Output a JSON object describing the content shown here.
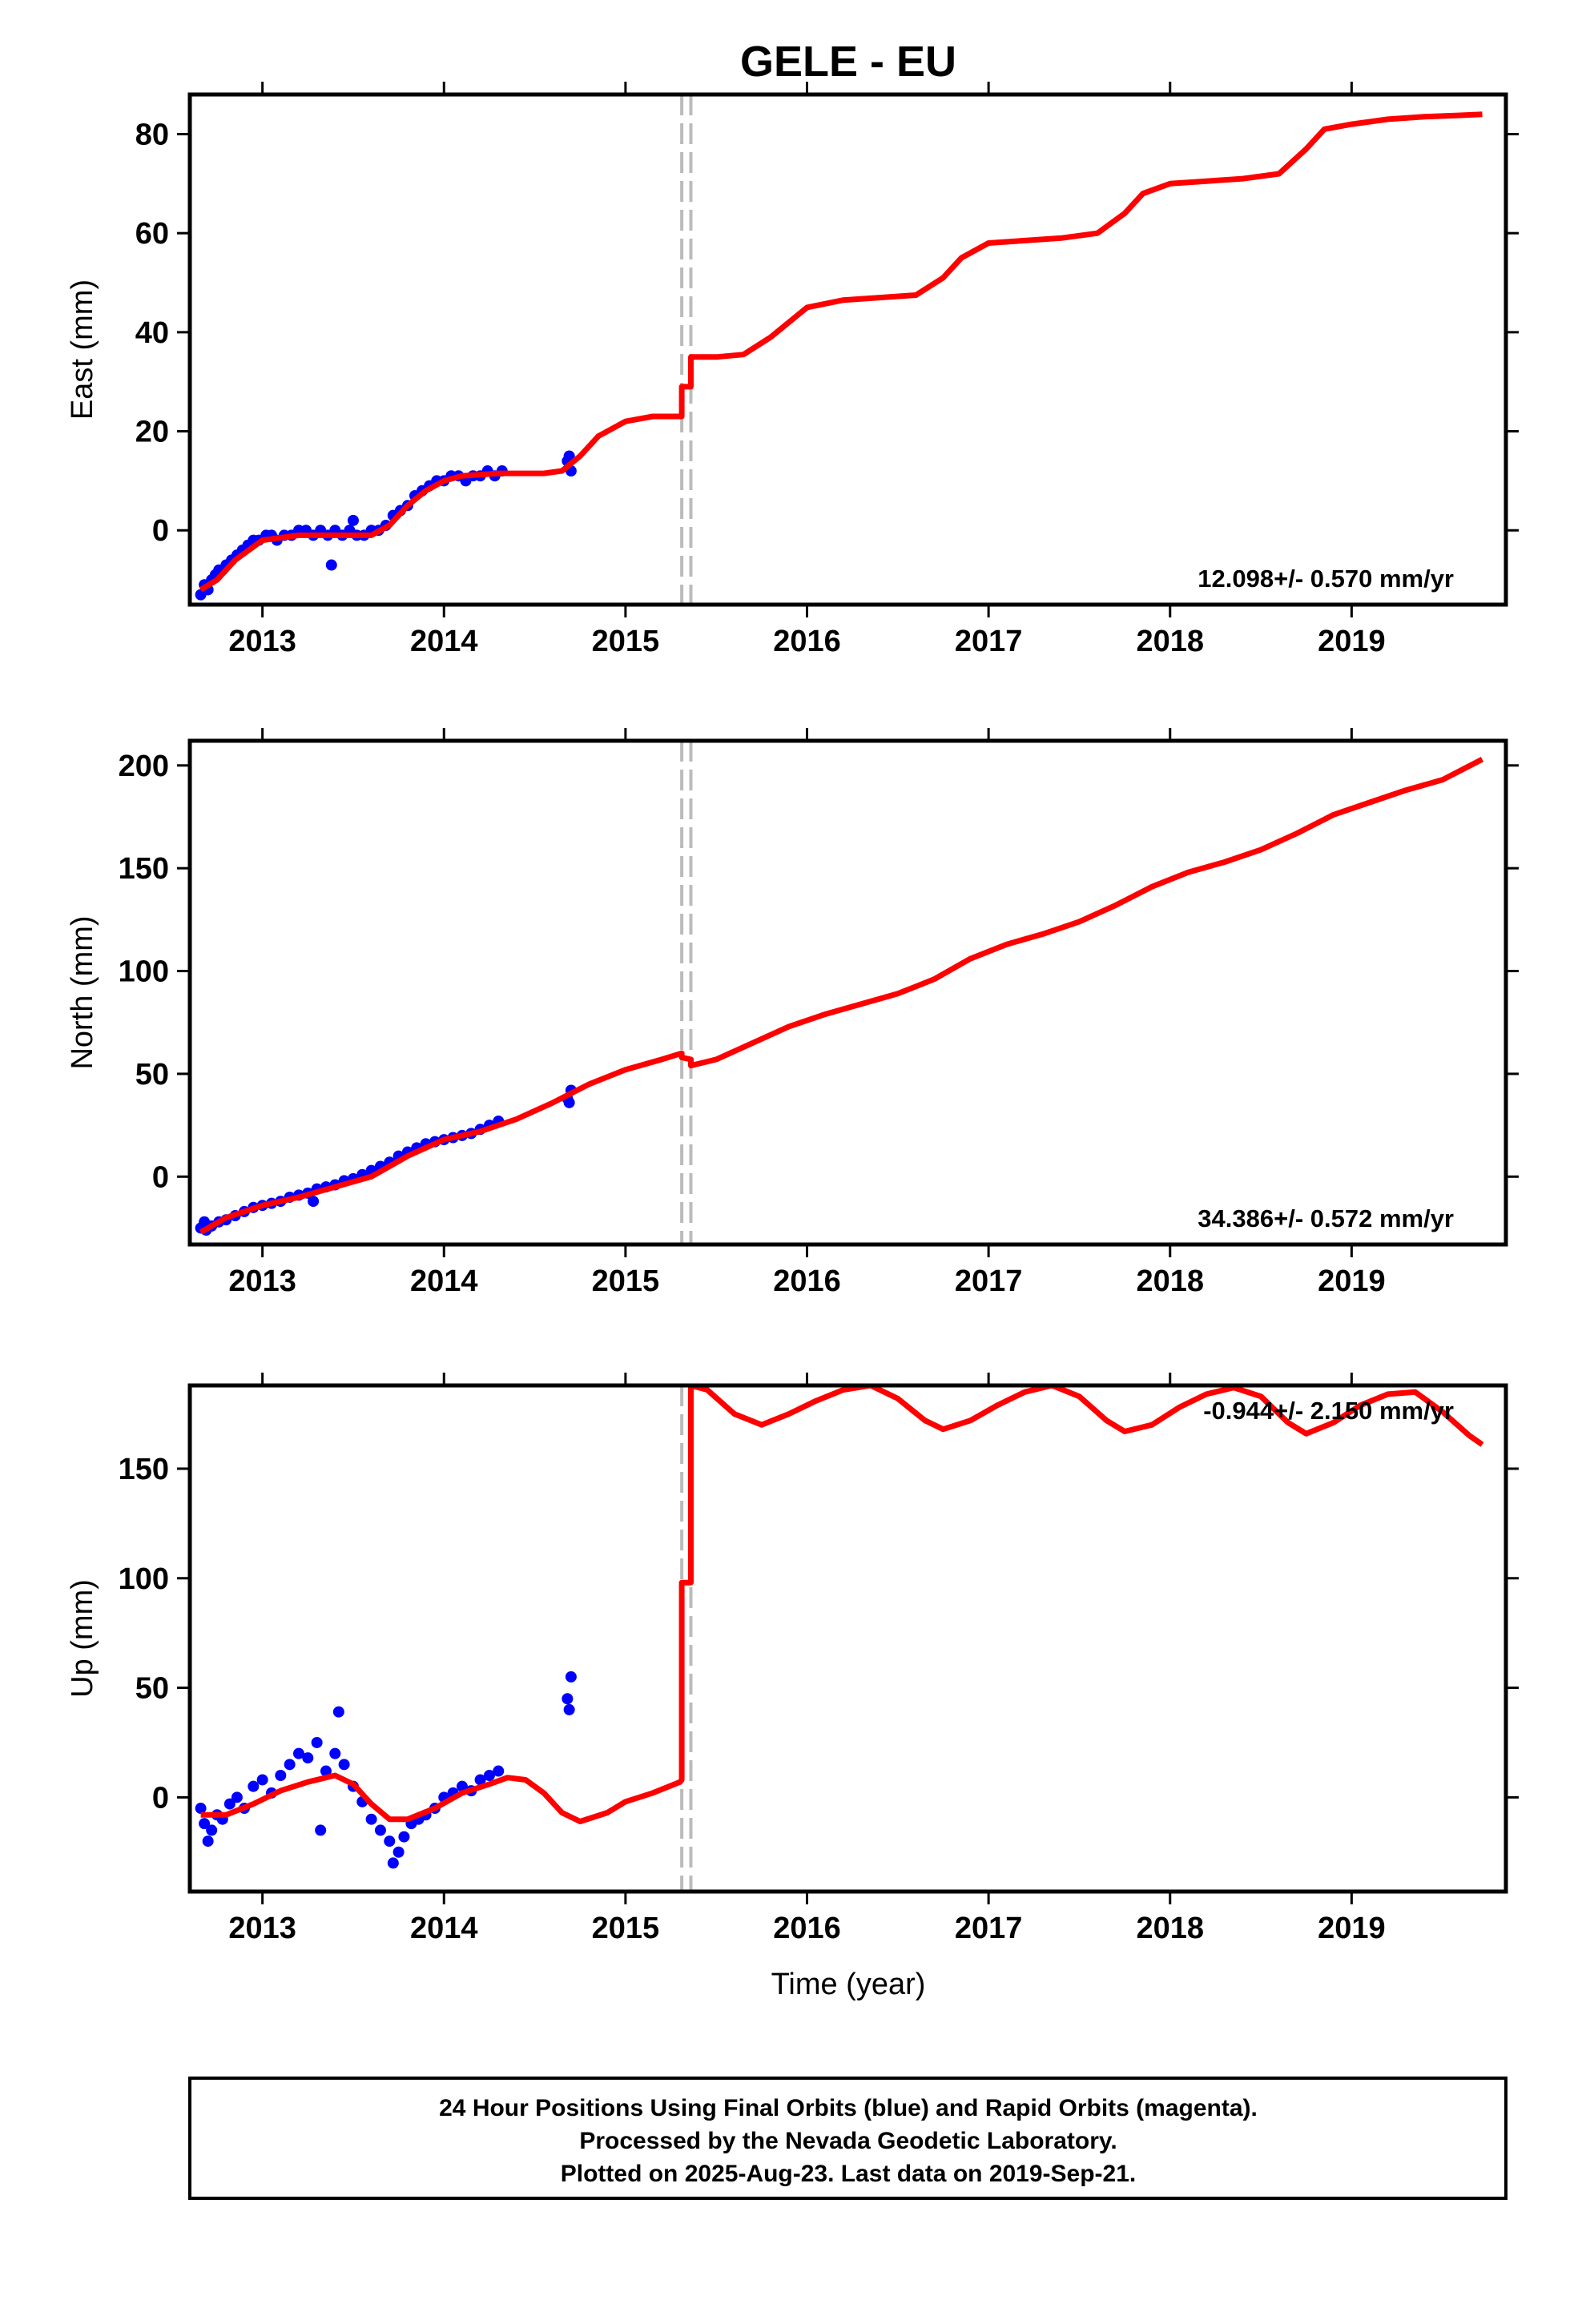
{
  "title": "GELE - EU",
  "xlabel": "Time (year)",
  "footer": {
    "lines": [
      "24 Hour Positions Using Final Orbits (blue) and Rapid Orbits (magenta).",
      "Processed by the Nevada Geodetic Laboratory.",
      "Plotted on 2025-Aug-23. Last data on 2019-Sep-21."
    ]
  },
  "colors": {
    "data": "#0000ff",
    "model": "#ff0000",
    "offset_line": "#bbbbbb",
    "axis": "#000000"
  },
  "chart_data": [
    {
      "type": "scatter",
      "ylabel": "East (mm)",
      "xlim": [
        2012.6,
        2019.85
      ],
      "ylim": [
        -15,
        88
      ],
      "xticks": [
        2013,
        2014,
        2015,
        2016,
        2017,
        2018,
        2019
      ],
      "yticks": [
        0,
        20,
        40,
        60,
        80
      ],
      "rate_label": "12.098+/- 0.570 mm/yr",
      "rate_label_position": "bottom-right",
      "offset_epochs": [
        2015.31,
        2015.36
      ],
      "series": [
        {
          "kind": "points",
          "x": [
            2012.66,
            2012.68,
            2012.7,
            2012.72,
            2012.74,
            2012.76,
            2012.78,
            2012.8,
            2012.83,
            2012.86,
            2012.89,
            2012.92,
            2012.95,
            2012.98,
            2013.02,
            2013.05,
            2013.08,
            2013.12,
            2013.16,
            2013.2,
            2013.24,
            2013.28,
            2013.32,
            2013.36,
            2013.4,
            2013.44,
            2013.48,
            2013.52,
            2013.56,
            2013.6,
            2013.64,
            2013.68,
            2013.72,
            2013.76,
            2013.8,
            2013.84,
            2013.88,
            2013.92,
            2013.96,
            2014.0,
            2014.04,
            2014.08,
            2014.12,
            2014.16,
            2014.2,
            2014.24,
            2014.28,
            2014.32,
            2014.68,
            2014.69,
            2014.7,
            2013.38,
            2013.5
          ],
          "y": [
            -13,
            -11,
            -12,
            -10,
            -9,
            -8,
            -8,
            -7,
            -6,
            -5,
            -4,
            -3,
            -2,
            -2,
            -1,
            -1,
            -2,
            -1,
            -1,
            0,
            0,
            -1,
            0,
            -1,
            0,
            -1,
            0,
            -1,
            -1,
            0,
            0,
            1,
            3,
            4,
            5,
            7,
            8,
            9,
            10,
            10,
            11,
            11,
            10,
            11,
            11,
            12,
            11,
            12,
            14,
            15,
            12,
            -7,
            2
          ]
        },
        {
          "kind": "model",
          "x": [
            2012.66,
            2012.75,
            2012.85,
            2013.0,
            2013.2,
            2013.4,
            2013.6,
            2013.7,
            2013.8,
            2013.9,
            2014.0,
            2014.1,
            2014.3,
            2014.55,
            2014.65,
            2014.75,
            2014.85,
            2015.0,
            2015.15,
            2015.3,
            2015.31,
            2015.31,
            2015.36,
            2015.36,
            2015.5,
            2015.65,
            2015.8,
            2016.0,
            2016.2,
            2016.4,
            2016.6,
            2016.75,
            2016.85,
            2017.0,
            2017.2,
            2017.4,
            2017.6,
            2017.75,
            2017.85,
            2018.0,
            2018.2,
            2018.4,
            2018.6,
            2018.75,
            2018.85,
            2019.0,
            2019.2,
            2019.4,
            2019.6,
            2019.72
          ],
          "y": [
            -12,
            -10,
            -6,
            -2,
            -1,
            -1,
            -1,
            1,
            5,
            8,
            10,
            11,
            11.5,
            11.5,
            12,
            15,
            19,
            22,
            23,
            23,
            23,
            29,
            29,
            35,
            35,
            35.5,
            39,
            45,
            46.5,
            47,
            47.5,
            51,
            55,
            58,
            58.5,
            59,
            60,
            64,
            68,
            70,
            70.5,
            71,
            72,
            77,
            81,
            82,
            83,
            83.5,
            83.8,
            84
          ]
        }
      ]
    },
    {
      "type": "scatter",
      "ylabel": "North (mm)",
      "xlim": [
        2012.6,
        2019.85
      ],
      "ylim": [
        -33,
        212
      ],
      "xticks": [
        2013,
        2014,
        2015,
        2016,
        2017,
        2018,
        2019
      ],
      "yticks": [
        0,
        50,
        100,
        150,
        200
      ],
      "rate_label": "34.386+/- 0.572 mm/yr",
      "rate_label_position": "bottom-right",
      "offset_epochs": [
        2015.31,
        2015.36
      ],
      "series": [
        {
          "kind": "points",
          "x": [
            2012.66,
            2012.69,
            2012.72,
            2012.76,
            2012.8,
            2012.85,
            2012.9,
            2012.95,
            2013.0,
            2013.05,
            2013.1,
            2013.15,
            2013.2,
            2013.25,
            2013.3,
            2013.35,
            2013.4,
            2013.45,
            2013.5,
            2013.55,
            2013.6,
            2013.65,
            2013.7,
            2013.75,
            2013.8,
            2013.85,
            2013.9,
            2013.95,
            2014.0,
            2014.05,
            2014.1,
            2014.15,
            2014.2,
            2014.25,
            2014.3,
            2014.68,
            2014.69,
            2014.7,
            2012.68,
            2013.28
          ],
          "y": [
            -25,
            -26,
            -24,
            -22,
            -21,
            -19,
            -17,
            -15,
            -14,
            -13,
            -12,
            -10,
            -9,
            -8,
            -6,
            -5,
            -4,
            -2,
            -1,
            1,
            3,
            5,
            7,
            10,
            12,
            14,
            16,
            17,
            18,
            19,
            20,
            21,
            23,
            25,
            27,
            38,
            36,
            42,
            -22,
            -12
          ]
        },
        {
          "kind": "model",
          "x": [
            2012.66,
            2012.8,
            2013.0,
            2013.2,
            2013.4,
            2013.6,
            2013.8,
            2014.0,
            2014.2,
            2014.4,
            2014.6,
            2014.8,
            2015.0,
            2015.2,
            2015.31,
            2015.31,
            2015.36,
            2015.36,
            2015.5,
            2015.7,
            2015.9,
            2016.1,
            2016.3,
            2016.5,
            2016.7,
            2016.9,
            2017.1,
            2017.3,
            2017.5,
            2017.7,
            2017.9,
            2018.1,
            2018.3,
            2018.5,
            2018.7,
            2018.9,
            2019.1,
            2019.3,
            2019.5,
            2019.72
          ],
          "y": [
            -27,
            -20,
            -14,
            -10,
            -5,
            0,
            10,
            18,
            22,
            28,
            36,
            45,
            52,
            57,
            60,
            58,
            57,
            54,
            57,
            65,
            73,
            79,
            84,
            89,
            96,
            106,
            113,
            118,
            124,
            132,
            141,
            148,
            153,
            159,
            167,
            176,
            182,
            188,
            193,
            203
          ]
        }
      ]
    },
    {
      "type": "scatter",
      "ylabel": "Up (mm)",
      "xlim": [
        2012.6,
        2019.85
      ],
      "ylim": [
        -43,
        188
      ],
      "xticks": [
        2013,
        2014,
        2015,
        2016,
        2017,
        2018,
        2019
      ],
      "yticks": [
        0,
        50,
        100,
        150
      ],
      "rate_label": "-0.944+/- 2.150 mm/yr",
      "rate_label_position": "top-right",
      "offset_epochs": [
        2015.31,
        2015.36
      ],
      "series": [
        {
          "kind": "points",
          "x": [
            2012.66,
            2012.68,
            2012.7,
            2012.72,
            2012.75,
            2012.78,
            2012.82,
            2012.86,
            2012.9,
            2012.95,
            2013.0,
            2013.05,
            2013.1,
            2013.15,
            2013.2,
            2013.25,
            2013.3,
            2013.35,
            2013.4,
            2013.45,
            2013.5,
            2013.55,
            2013.6,
            2013.65,
            2013.7,
            2013.72,
            2013.75,
            2013.78,
            2013.82,
            2013.86,
            2013.9,
            2013.95,
            2014.0,
            2014.05,
            2014.1,
            2014.15,
            2014.2,
            2014.25,
            2014.3,
            2014.68,
            2014.69,
            2014.7,
            2013.42,
            2013.32
          ],
          "y": [
            -5,
            -12,
            -20,
            -15,
            -8,
            -10,
            -3,
            0,
            -5,
            5,
            8,
            2,
            10,
            15,
            20,
            18,
            25,
            12,
            20,
            15,
            5,
            -2,
            -10,
            -15,
            -20,
            -30,
            -25,
            -18,
            -12,
            -10,
            -8,
            -5,
            0,
            2,
            5,
            3,
            8,
            10,
            12,
            45,
            40,
            55,
            39,
            -15
          ]
        },
        {
          "kind": "model",
          "x": [
            2012.66,
            2012.8,
            2012.95,
            2013.1,
            2013.25,
            2013.4,
            2013.5,
            2013.6,
            2013.7,
            2013.8,
            2013.95,
            2014.1,
            2014.25,
            2014.35,
            2014.45,
            2014.55,
            2014.65,
            2014.75,
            2014.9,
            2015.0,
            2015.15,
            2015.3,
            2015.31,
            2015.31,
            2015.36,
            2015.36,
            2015.45,
            2015.6,
            2015.75,
            2015.9,
            2016.05,
            2016.2,
            2016.35,
            2016.5,
            2016.65,
            2016.75,
            2016.9,
            2017.05,
            2017.2,
            2017.35,
            2017.5,
            2017.65,
            2017.75,
            2017.9,
            2018.05,
            2018.2,
            2018.35,
            2018.5,
            2018.65,
            2018.75,
            2018.9,
            2019.05,
            2019.2,
            2019.35,
            2019.5,
            2019.65,
            2019.72
          ],
          "y": [
            -8,
            -8,
            -3,
            3,
            7,
            10,
            6,
            -3,
            -10,
            -10,
            -5,
            2,
            6,
            9,
            8,
            2,
            -7,
            -11,
            -7,
            -2,
            2,
            7,
            8,
            98,
            98,
            188,
            186,
            175,
            170,
            175,
            181,
            186,
            188,
            182,
            172,
            168,
            172,
            179,
            185,
            188,
            183,
            172,
            167,
            170,
            178,
            184,
            187,
            183,
            171,
            166,
            171,
            179,
            184,
            185,
            176,
            165,
            161
          ]
        }
      ]
    }
  ]
}
